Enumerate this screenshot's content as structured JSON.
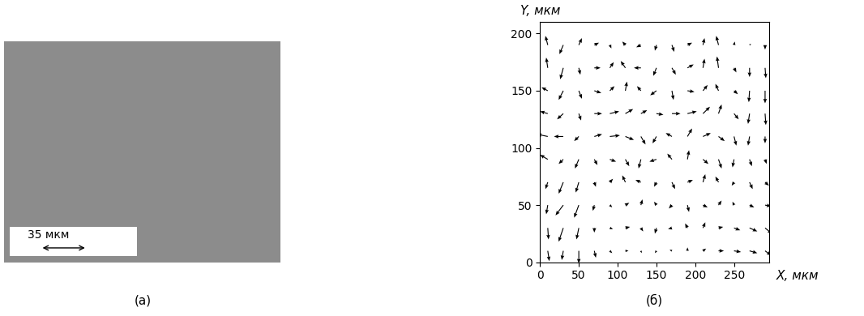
{
  "image_panel": {
    "caption": "(а)",
    "scale_bar": "35 мкм"
  },
  "chart_data": {
    "type": "quiver",
    "caption": "(б)",
    "x_label": "X, мкм",
    "y_label": "Y, мкм",
    "x": [
      10,
      30,
      50,
      70,
      90,
      110,
      130,
      150,
      170,
      190,
      210,
      230,
      250,
      270,
      290
    ],
    "y": [
      10,
      30,
      50,
      70,
      90,
      110,
      130,
      150,
      170,
      190
    ],
    "u": [
      [
        2,
        -2,
        0,
        2,
        3,
        4,
        1,
        -2,
        -3,
        0,
        4,
        7,
        9,
        10,
        8
      ],
      [
        1,
        -6,
        -3,
        0,
        4,
        6,
        3,
        -2,
        -5,
        -3,
        3,
        6,
        8,
        10,
        9
      ],
      [
        -2,
        -10,
        -6,
        -2,
        3,
        5,
        2,
        -3,
        -4,
        2,
        6,
        4,
        -2,
        6,
        8
      ],
      [
        -3,
        -6,
        -4,
        2,
        4,
        -4,
        -7,
        -3,
        4,
        7,
        3,
        -4,
        -3,
        4,
        5
      ],
      [
        -10,
        -6,
        -5,
        4,
        8,
        5,
        -3,
        -9,
        -6,
        2,
        7,
        4,
        -2,
        3,
        2
      ],
      [
        -14,
        -12,
        -6,
        10,
        13,
        11,
        6,
        -5,
        -8,
        6,
        10,
        8,
        3,
        -2,
        0
      ],
      [
        -10,
        -8,
        3,
        10,
        12,
        10,
        8,
        9,
        11,
        12,
        9,
        4,
        6,
        -2,
        1
      ],
      [
        -8,
        -6,
        4,
        9,
        6,
        2,
        -5,
        -8,
        2,
        9,
        6,
        -4,
        5,
        -1,
        0
      ],
      [
        -2,
        -4,
        2,
        8,
        5,
        -6,
        -9,
        -4,
        5,
        8,
        2,
        -2,
        3,
        0,
        1
      ],
      [
        -3,
        -5,
        4,
        6,
        2,
        -4,
        -6,
        -2,
        3,
        6,
        2,
        -3,
        1,
        2,
        0
      ]
    ],
    "v": [
      [
        -9,
        -8,
        -11,
        -6,
        -2,
        0,
        -2,
        -2,
        1,
        3,
        2,
        0,
        -1,
        -2,
        -4
      ],
      [
        -10,
        -12,
        -10,
        -4,
        -1,
        1,
        -3,
        -5,
        -1,
        4,
        5,
        1,
        -2,
        -3,
        -5
      ],
      [
        -8,
        -9,
        -11,
        -5,
        -2,
        2,
        5,
        3,
        -3,
        -6,
        -2,
        4,
        3,
        -2,
        -1
      ],
      [
        -6,
        -10,
        -9,
        -4,
        3,
        6,
        2,
        -4,
        -6,
        2,
        7,
        5,
        -3,
        -6,
        -3
      ],
      [
        4,
        -4,
        -8,
        -5,
        -2,
        -6,
        -8,
        -2,
        5,
        8,
        -4,
        -8,
        -7,
        -6,
        -4
      ],
      [
        2,
        0,
        -4,
        2,
        1,
        -3,
        -7,
        -6,
        3,
        7,
        3,
        -4,
        -8,
        -8,
        -6
      ],
      [
        2,
        -5,
        -6,
        0,
        2,
        4,
        3,
        -1,
        0,
        2,
        6,
        8,
        -5,
        -9,
        -10
      ],
      [
        3,
        -8,
        -7,
        -2,
        4,
        8,
        4,
        -4,
        -8,
        -1,
        5,
        6,
        -3,
        -10,
        -11
      ],
      [
        9,
        -10,
        -6,
        0,
        5,
        6,
        0,
        -7,
        -6,
        3,
        8,
        10,
        -4,
        -8,
        -9
      ],
      [
        8,
        -8,
        6,
        2,
        -3,
        3,
        -2,
        -5,
        -6,
        2,
        6,
        8,
        3,
        1,
        -4
      ]
    ],
    "xlim": [
      0,
      295
    ],
    "ylim": [
      0,
      210
    ],
    "xticks": [
      0,
      50,
      100,
      150,
      200,
      250
    ],
    "yticks": [
      0,
      50,
      100,
      150,
      200
    ]
  }
}
